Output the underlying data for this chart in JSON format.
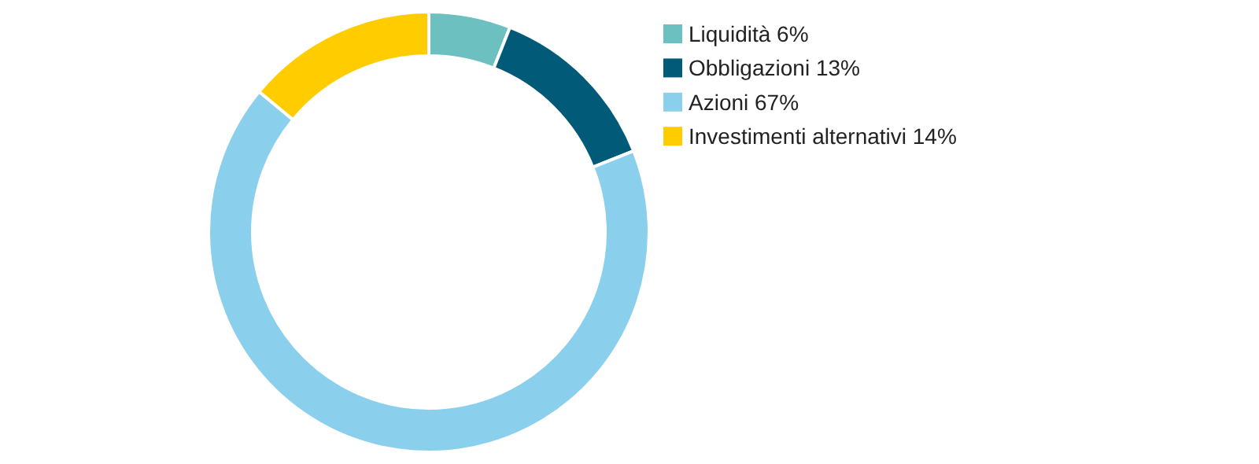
{
  "chart_data": {
    "type": "donut",
    "categories": [
      "Liquidità 6%",
      "Obbligazioni 13%",
      "Azioni 67%",
      "Investimenti alternativi 14%"
    ],
    "values": [
      6,
      13,
      67,
      14
    ],
    "colors": [
      "#6cc0c0",
      "#005a78",
      "#8ad0ec",
      "#ffcc00"
    ],
    "legend": "right"
  }
}
